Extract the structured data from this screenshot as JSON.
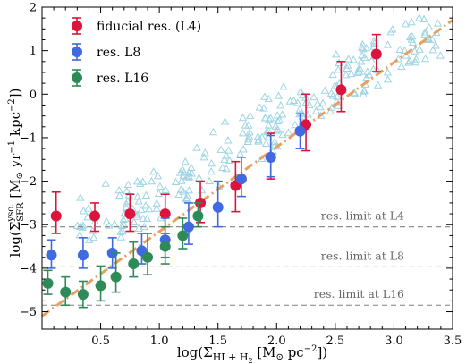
{
  "chart_data": {
    "type": "scatter",
    "xlabel": "log(Σ_HI+H2 [M⊙ pc⁻²])",
    "ylabel": "log(Σ^yso._SFR [M⊙ yr⁻¹ kpc⁻²])",
    "xlim": [
      0.0,
      3.5
    ],
    "ylim": [
      -5.4,
      2.0
    ],
    "x_ticks": [
      "0.5",
      "1.0",
      "1.5",
      "2.0",
      "2.5",
      "3.0",
      "3.5"
    ],
    "y_ticks": [
      "2",
      "1",
      "0",
      "−1",
      "−2",
      "−3",
      "−4",
      "−5"
    ],
    "grid": false,
    "legend_position": "top-left",
    "colors": {
      "fiducial": "#dc143c",
      "L8": "#4169e1",
      "L16": "#2e8b57",
      "background": "#9ed4e3",
      "fit_line": "#e8a060",
      "limit_line": "#808080"
    },
    "fit_line": {
      "x": [
        0.0,
        3.5
      ],
      "y": [
        -5.1,
        1.7
      ],
      "style": "dash-dot"
    },
    "resolution_limits": [
      {
        "label": "res. limit at L4",
        "y": -3.05
      },
      {
        "label": "res. limit at L8",
        "y": -3.97
      },
      {
        "label": "res. limit at L16",
        "y": -4.85
      }
    ],
    "series": [
      {
        "name": "fiducial res. (L4)",
        "x": [
          0.12,
          0.45,
          0.75,
          1.05,
          1.35,
          1.65,
          1.95,
          2.25,
          2.55,
          2.85
        ],
        "y": [
          -2.8,
          -2.8,
          -2.75,
          -2.75,
          -2.5,
          -2.1,
          -1.45,
          -0.7,
          0.1,
          0.92
        ],
        "err_low": [
          0.4,
          0.35,
          0.4,
          0.45,
          0.45,
          0.6,
          0.5,
          0.6,
          0.5,
          0.4
        ],
        "err_high": [
          0.55,
          0.3,
          0.45,
          0.45,
          0.5,
          0.55,
          0.55,
          0.7,
          0.65,
          0.45
        ]
      },
      {
        "name": "res. L8",
        "x": [
          0.08,
          0.35,
          0.6,
          0.85,
          1.05,
          1.25,
          1.5,
          1.7,
          1.95,
          2.2
        ],
        "y": [
          -3.7,
          -3.7,
          -3.65,
          -3.6,
          -3.35,
          -3.05,
          -2.6,
          -1.95,
          -1.45,
          -0.85
        ],
        "err_low": [
          0.3,
          0.3,
          0.35,
          0.3,
          0.4,
          0.4,
          0.45,
          0.4,
          0.45,
          0.4
        ],
        "err_high": [
          0.35,
          0.4,
          0.35,
          0.4,
          0.5,
          0.55,
          0.6,
          0.5,
          0.5,
          0.4
        ]
      },
      {
        "name": "res. L16",
        "x": [
          0.05,
          0.2,
          0.35,
          0.5,
          0.63,
          0.78,
          0.9,
          1.05,
          1.2,
          1.33
        ],
        "y": [
          -4.35,
          -4.55,
          -4.6,
          -4.4,
          -4.2,
          -3.9,
          -3.75,
          -3.5,
          -3.25,
          -2.8
        ],
        "err_low": [
          0.25,
          0.3,
          0.3,
          0.35,
          0.35,
          0.3,
          0.4,
          0.4,
          0.3,
          0.25
        ],
        "err_high": [
          0.3,
          0.35,
          0.3,
          0.45,
          0.55,
          0.5,
          0.55,
          0.45,
          0.4,
          0.3
        ]
      }
    ]
  }
}
